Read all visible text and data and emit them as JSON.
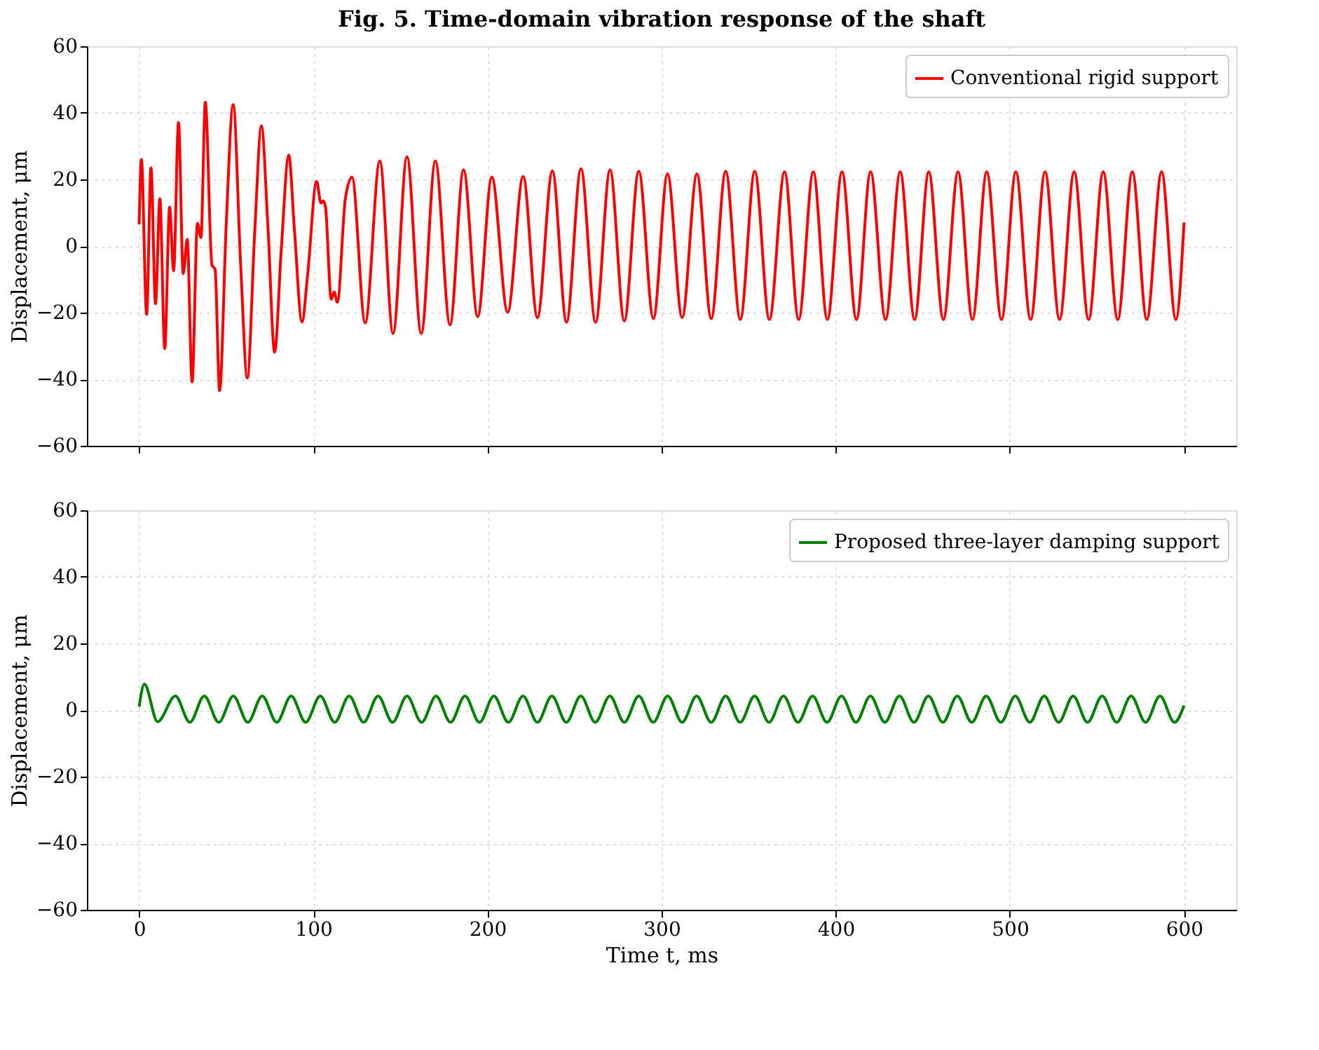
{
  "chart_data": [
    {
      "type": "line",
      "title": "Fig. 5. Time-domain vibration response of the shaft",
      "ylabel": "Displacement, μm",
      "xlim": [
        -30,
        630
      ],
      "xticks": [
        0,
        100,
        200,
        300,
        400,
        500,
        600
      ],
      "ylim": [
        -60,
        60
      ],
      "yticks": [
        -60,
        -40,
        -20,
        0,
        20,
        40,
        60
      ],
      "grid": true,
      "legend": "top right",
      "tick_labels": "y",
      "line_style": "solid",
      "marker": "none",
      "series": [
        {
          "name": "Conventional rigid support",
          "color": "#ff0000",
          "x": [
            0,
            1.3,
            4.3,
            6.8,
            9.4,
            11.9,
            14.7,
            17.5,
            19.8,
            22.6,
            25.3,
            27.6,
            30.4,
            33.5,
            35.5,
            38,
            41.8,
            43.6,
            46.2,
            50,
            54,
            58.3,
            62.1,
            66.4,
            70.2,
            74,
            77.8,
            81.6,
            85.9,
            89.2,
            93.5,
            96.8,
            101.9,
            104.4,
            105.7,
            107,
            110.3,
            112,
            113.8,
            118.4,
            122.2,
            129.8,
            138.2,
            145.8,
            153.8,
            162.0,
            170.1,
            178.5,
            186.3,
            194.4,
            202.5,
            211.6,
            220.5,
            228.7,
            237.3,
            245.4,
            253.7,
            262.1,
            270.4,
            278.6,
            286.9,
            295.3,
            303.4,
            311.8,
            320.3,
            328.5,
            336.8,
            345.2,
            353.5,
            361.9,
            370.6,
            378.7,
            387.1,
            395.2,
            403.6,
            411.9,
            420.0,
            428.6,
            437.0,
            445.3,
            453.4,
            461.8,
            470.2,
            478.5,
            486.7,
            495.2,
            503.4,
            511.9,
            520.2,
            528.5,
            536.9,
            545.2,
            553.6,
            561.9,
            570.3,
            578.6,
            587.1,
            595.3,
            600
          ],
          "values": [
            6.5,
            26,
            -20.5,
            23.5,
            -17.3,
            14.2,
            -30.8,
            11.7,
            -7.4,
            37.1,
            -8.3,
            2,
            -40.8,
            6.8,
            2.6,
            43.2,
            -5.7,
            -7,
            -43.4,
            6.5,
            42.5,
            -5.7,
            -39.6,
            4.6,
            36.1,
            5.2,
            -31.9,
            -1.2,
            27.3,
            4.6,
            -22.8,
            -8.3,
            19.4,
            12.9,
            13.6,
            11.7,
            -16,
            -13.8,
            -16.9,
            14.2,
            20.7,
            -23.1,
            25.6,
            -26.3,
            26.8,
            -26.3,
            25.6,
            -23.7,
            22.9,
            -21.2,
            20.7,
            -19.9,
            20.9,
            -21.5,
            22.6,
            -22.9,
            23.2,
            -22.9,
            22.9,
            -22.5,
            22.5,
            -21.8,
            21.7,
            -21.5,
            21.7,
            -21.8,
            22.5,
            -22.1,
            22.5,
            -22.1,
            22.3,
            -22.1,
            22.3,
            -22.1,
            22.3,
            -22.1,
            22.3,
            -22.1,
            22.3,
            -22.1,
            22.3,
            -22.1,
            22.3,
            -22.1,
            22.3,
            -22.1,
            22.3,
            -22.1,
            22.3,
            -22.1,
            22.3,
            -22.1,
            22.3,
            -22.1,
            22.3,
            -22.1,
            22.3,
            -22.1,
            7.1
          ]
        }
      ]
    },
    {
      "type": "line",
      "xlabel": "Time t, ms",
      "ylabel": "Displacement, μm",
      "xlim": [
        -30,
        630
      ],
      "xticks": [
        0,
        100,
        200,
        300,
        400,
        500,
        600
      ],
      "ylim": [
        -60,
        60
      ],
      "yticks": [
        -60,
        -40,
        -20,
        0,
        20,
        40,
        60
      ],
      "grid": true,
      "legend": "top right",
      "line_style": "solid",
      "marker": "none",
      "series": [
        {
          "name": "Proposed three-layer damping support",
          "color": "#008000",
          "x": [
            0,
            3,
            10.6,
            20.8,
            29.1,
            37.4,
            45.7,
            54.1,
            62.4,
            70.7,
            79.0,
            87.3,
            95.6,
            104.0,
            112.3,
            120.6,
            128.9,
            137.2,
            145.5,
            153.8,
            162.2,
            170.5,
            178.8,
            187.1,
            195.4,
            203.7,
            212.0,
            220.4,
            228.7,
            237.0,
            245.3,
            253.6,
            261.9,
            270.3,
            278.6,
            286.9,
            295.2,
            303.5,
            311.8,
            320.1,
            328.5,
            336.8,
            345.1,
            353.4,
            361.7,
            370.0,
            378.3,
            386.7,
            395.0,
            403.3,
            411.6,
            419.9,
            428.2,
            436.6,
            444.9,
            453.2,
            461.5,
            469.8,
            478.1,
            486.4,
            494.8,
            503.1,
            511.4,
            519.7,
            528.0,
            536.3,
            544.6,
            553.0,
            561.3,
            569.6,
            577.9,
            586.2,
            594.5,
            600
          ],
          "values": [
            1,
            7.8,
            -3.5,
            4.2,
            -3.7,
            4.2,
            -3.7,
            4.2,
            -3.7,
            4.2,
            -3.7,
            4.2,
            -3.7,
            4.2,
            -3.7,
            4.2,
            -3.7,
            4.2,
            -3.7,
            4.2,
            -3.7,
            4.2,
            -3.7,
            4.2,
            -3.7,
            4.2,
            -3.7,
            4.2,
            -3.7,
            4.2,
            -3.7,
            4.2,
            -3.7,
            4.2,
            -3.7,
            4.2,
            -3.7,
            4.2,
            -3.7,
            4.2,
            -3.7,
            4.2,
            -3.7,
            4.2,
            -3.7,
            4.2,
            -3.7,
            4.2,
            -3.7,
            4.2,
            -3.7,
            4.2,
            -3.7,
            4.2,
            -3.7,
            4.2,
            -3.7,
            4.2,
            -3.7,
            4.2,
            -3.7,
            4.2,
            -3.7,
            4.2,
            -3.7,
            4.2,
            -3.7,
            4.2,
            -3.7,
            4.2,
            -3.7,
            4.2,
            -3.7,
            1.4
          ]
        }
      ]
    }
  ]
}
